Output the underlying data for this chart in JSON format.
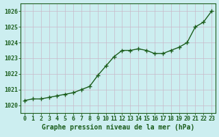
{
  "x": [
    0,
    1,
    2,
    3,
    4,
    5,
    6,
    7,
    8,
    9,
    10,
    11,
    12,
    13,
    14,
    15,
    16,
    17,
    18,
    19,
    20,
    21,
    22,
    23
  ],
  "y": [
    1020.3,
    1020.4,
    1020.4,
    1020.5,
    1020.6,
    1020.7,
    1020.8,
    1021.0,
    1021.2,
    1021.9,
    1022.5,
    1023.1,
    1023.5,
    1023.5,
    1023.6,
    1023.5,
    1023.3,
    1023.3,
    1023.5,
    1023.7,
    1024.0,
    1025.0,
    1025.3,
    1026.0
  ],
  "ylim": [
    1019.5,
    1026.5
  ],
  "xlim": [
    -0.5,
    23.5
  ],
  "yticks": [
    1020,
    1021,
    1022,
    1023,
    1024,
    1025,
    1026
  ],
  "xticks": [
    0,
    1,
    2,
    3,
    4,
    5,
    6,
    7,
    8,
    9,
    10,
    11,
    12,
    13,
    14,
    15,
    16,
    17,
    18,
    19,
    20,
    21,
    22,
    23
  ],
  "xlabel": "Graphe pression niveau de la mer (hPa)",
  "line_color": "#1a5c1a",
  "marker": "+",
  "bg_color": "#cceef0",
  "grid_color": "#c8b8c8",
  "border_color": "#1a5c1a",
  "xlabel_color": "#1a5c1a",
  "tick_color": "#1a5c1a",
  "line_width": 1.0,
  "marker_size": 4,
  "marker_ew": 1.0,
  "tick_fontsize": 6.0,
  "xlabel_fontsize": 7.0
}
